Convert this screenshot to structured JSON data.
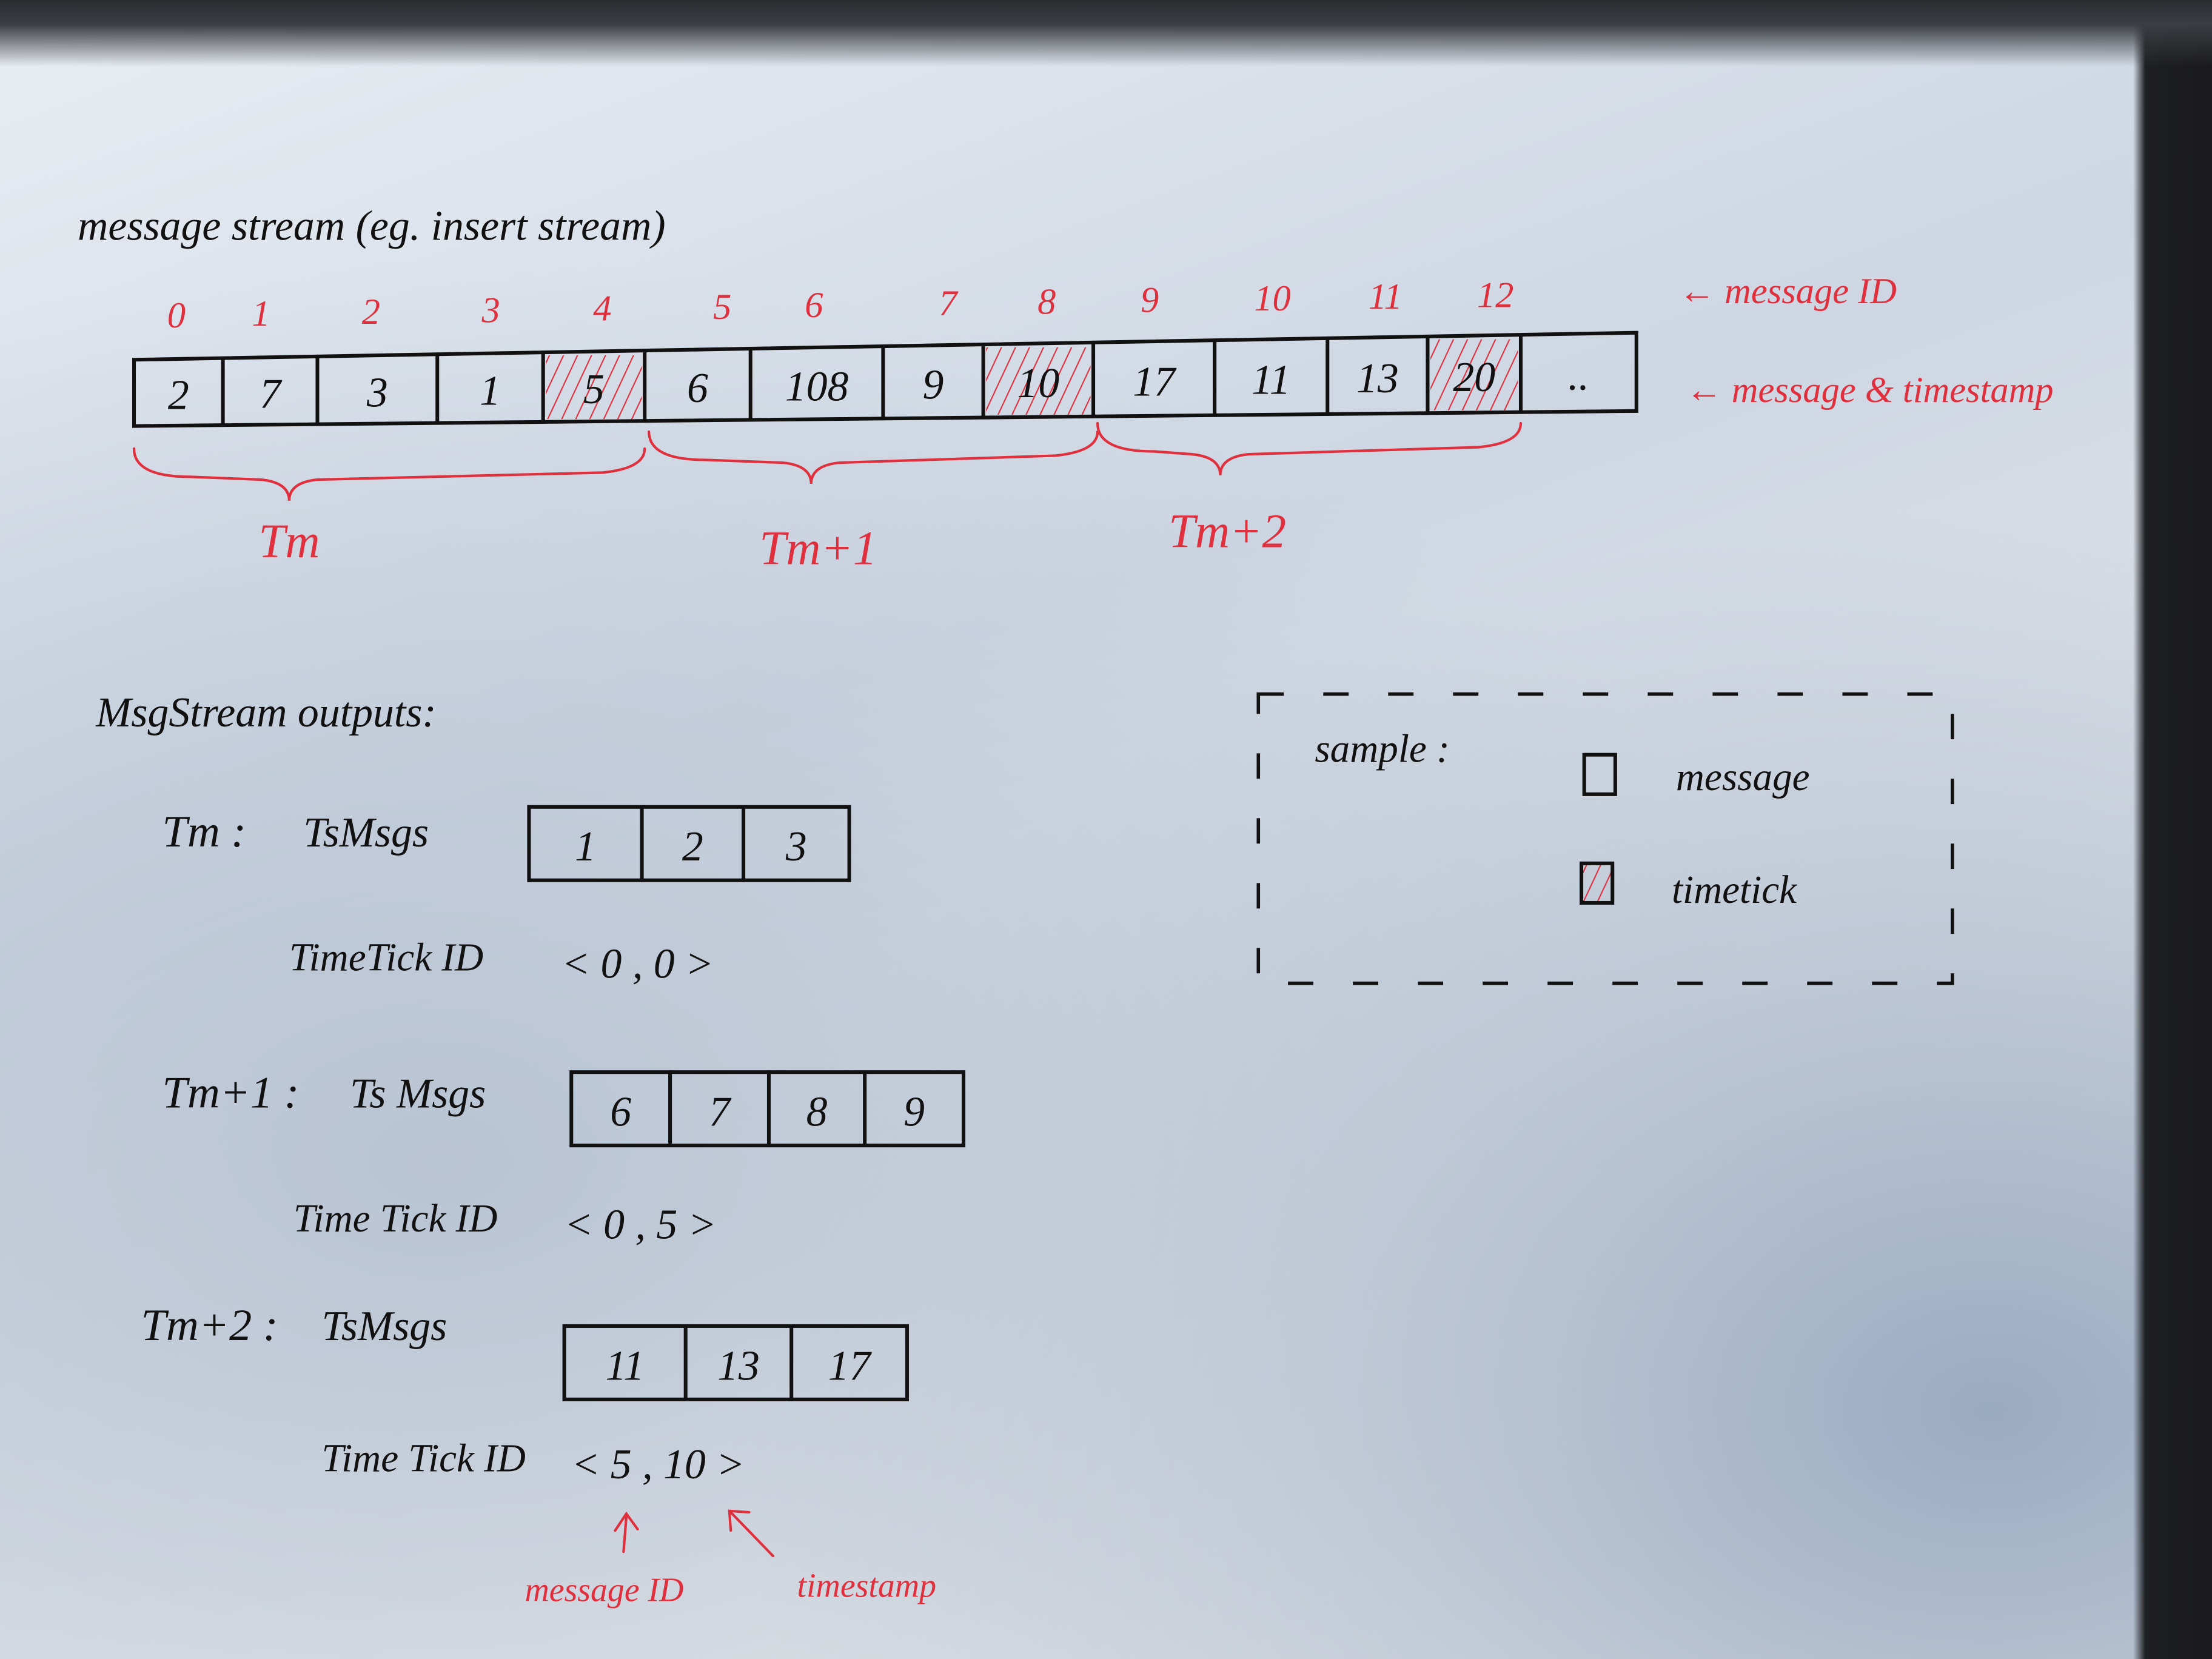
{
  "title": "message stream (eg. insert stream)",
  "stream": {
    "message_ids": [
      "0",
      "1",
      "2",
      "3",
      "4",
      "5",
      "6",
      "7",
      "8",
      "9",
      "10",
      "11",
      "12"
    ],
    "cells": [
      {
        "value": "2",
        "timetick": false
      },
      {
        "value": "7",
        "timetick": false
      },
      {
        "value": "3",
        "timetick": false
      },
      {
        "value": "1",
        "timetick": false
      },
      {
        "value": "5",
        "timetick": true
      },
      {
        "value": "6",
        "timetick": false
      },
      {
        "value": "108",
        "timetick": false
      },
      {
        "value": "9",
        "timetick": false
      },
      {
        "value": "10",
        "timetick": true
      },
      {
        "value": "17",
        "timetick": false
      },
      {
        "value": "11",
        "timetick": false
      },
      {
        "value": "13",
        "timetick": false
      },
      {
        "value": "20",
        "timetick": true
      },
      {
        "value": "..",
        "timetick": false
      }
    ],
    "id_annotation": "← message ID",
    "value_annotation": "← message & timestamp",
    "ranges": [
      "Tm",
      "Tm+1",
      "Tm+2"
    ]
  },
  "outputs": {
    "heading": "MsgStream outputs:",
    "groups": [
      {
        "label": "Tm :",
        "msgs_label": "TsMsgs",
        "msgs": [
          "1",
          "2",
          "3"
        ],
        "tick_label": "TimeTick ID",
        "tick": "< 0 , 0 >"
      },
      {
        "label": "Tm+1 :",
        "msgs_label": "Ts Msgs",
        "msgs": [
          "6",
          "7",
          "8",
          "9"
        ],
        "tick_label": "Time Tick ID",
        "tick": "< 0 , 5 >"
      },
      {
        "label": "Tm+2 :",
        "msgs_label": "TsMsgs",
        "msgs": [
          "11",
          "13",
          "17"
        ],
        "tick_label": "Time Tick ID",
        "tick": "< 5 , 10 >"
      }
    ],
    "annotation_msg_id": "message ID",
    "annotation_timestamp": "timestamp"
  },
  "legend": {
    "title": "sample :",
    "items": [
      {
        "label": "message",
        "timetick": false
      },
      {
        "label": "timetick",
        "timetick": true
      }
    ]
  },
  "colors": {
    "ink": "#111111",
    "red_ink": "#e0303e"
  }
}
